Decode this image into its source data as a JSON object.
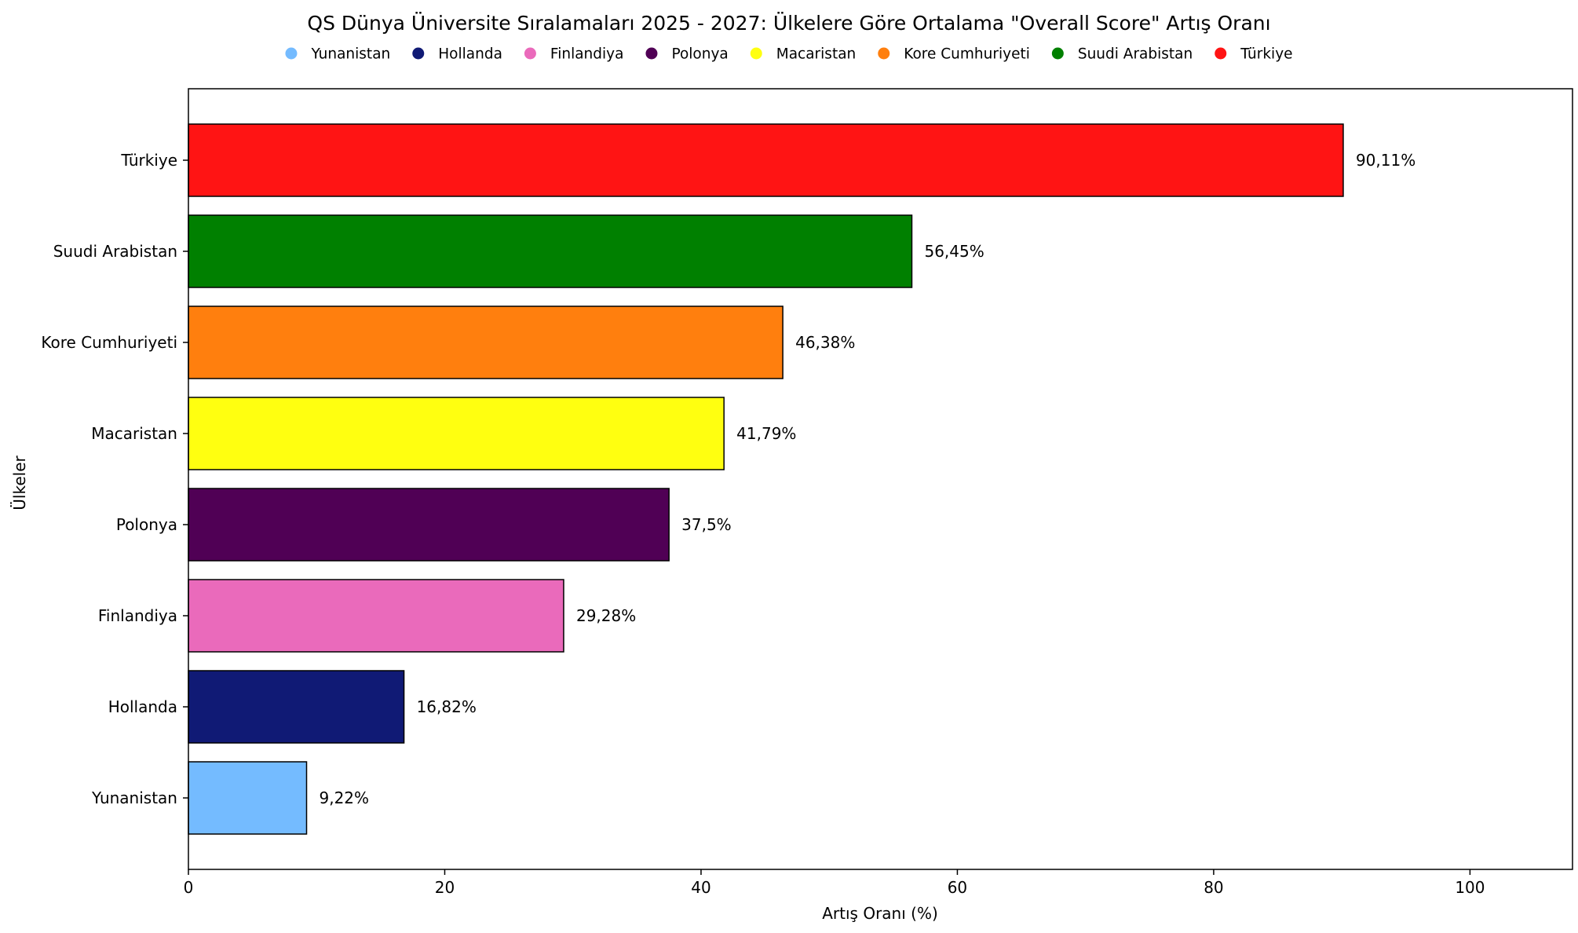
{
  "chart_data": {
    "type": "bar",
    "orientation": "horizontal",
    "title": "QS Dünya Üniversite Sıralamaları 2025 - 2027: Ülkelere Göre Ortalama \"Overall Score\" Artış Oranı",
    "xlabel": "Artış Oranı (%)",
    "ylabel": "Ülkeler",
    "xlim": [
      0,
      108
    ],
    "x_ticks": [
      0,
      20,
      40,
      60,
      80,
      100
    ],
    "grid": false,
    "legend_position": "top-center",
    "categories": [
      "Yunanistan",
      "Hollanda",
      "Finlandiya",
      "Polonya",
      "Macaristan",
      "Kore Cumhuriyeti",
      "Suudi Arabistan",
      "Türkiye"
    ],
    "values": [
      9.22,
      16.82,
      29.28,
      37.5,
      41.79,
      46.38,
      56.45,
      90.11
    ],
    "value_labels": [
      "9,22%",
      "16,82%",
      "29,28%",
      "37,5%",
      "41,79%",
      "46,38%",
      "56,45%",
      "90,11%"
    ],
    "colors": [
      "#74bbff",
      "#101a75",
      "#ea6abb",
      "#500055",
      "#ffff10",
      "#ff7f0e",
      "#008000",
      "#ff1414"
    ],
    "legend": [
      "Yunanistan",
      "Hollanda",
      "Finlandiya",
      "Polonya",
      "Macaristan",
      "Kore Cumhuriyeti",
      "Suudi Arabistan",
      "Türkiye"
    ]
  }
}
